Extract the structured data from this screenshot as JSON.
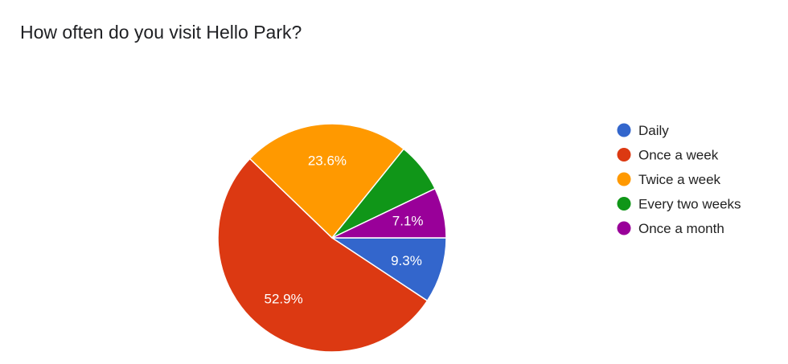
{
  "chart_data": {
    "type": "pie",
    "title": "How often do you visit Hello Park?",
    "categories": [
      "Daily",
      "Once a week",
      "Twice a week",
      "Every two weeks",
      "Once a month"
    ],
    "values": [
      9.3,
      52.9,
      23.6,
      7.1,
      7.1
    ],
    "data_labels": [
      "9.3%",
      "52.9%",
      "23.6%",
      "",
      "7.1%"
    ],
    "colors": [
      "#3366cc",
      "#dc3912",
      "#ff9900",
      "#109618",
      "#990099"
    ],
    "legend_position": "right",
    "start_angle": "3 o'clock, clockwise"
  }
}
